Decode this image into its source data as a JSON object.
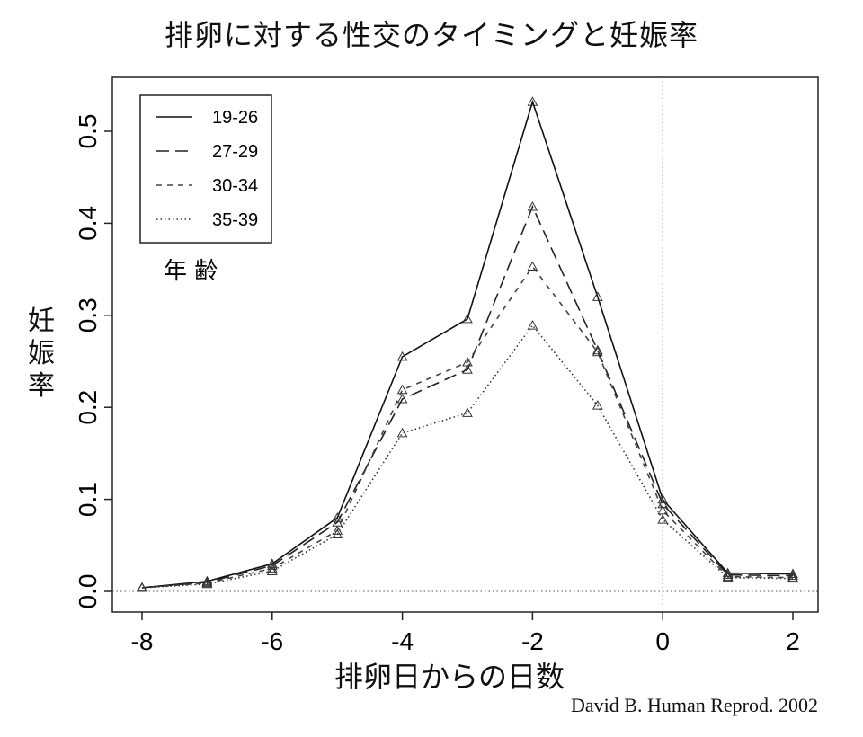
{
  "chart_data": {
    "type": "line",
    "title": "排卵に対する性交のタイミングと妊娠率",
    "xlabel": "排卵日からの日数",
    "ylabel": "妊娠率",
    "legend_title": "年 齢",
    "source": "David B. Human Reprod. 2002",
    "xlim": [
      -8,
      2
    ],
    "ylim": [
      0,
      0.5
    ],
    "x_ticks": [
      -8,
      -6,
      -4,
      -2,
      0,
      2
    ],
    "y_ticks": [
      0.0,
      0.1,
      0.2,
      0.3,
      0.4,
      0.5
    ],
    "y_tick_labels": [
      "0.0",
      "0.1",
      "0.2",
      "0.3",
      "0.4",
      "0.5"
    ],
    "reference_lines": {
      "x": 0,
      "y": 0
    },
    "legend_position": "top-left",
    "marker": "triangle",
    "x": [
      -8,
      -7,
      -6,
      -5,
      -4,
      -3,
      -2,
      -1,
      0,
      1,
      2
    ],
    "series": [
      {
        "name": "19-26",
        "dash": "solid",
        "values": [
          0.004,
          0.011,
          0.03,
          0.08,
          0.255,
          0.296,
          0.532,
          0.32,
          0.1,
          0.02,
          0.019
        ]
      },
      {
        "name": "27-29",
        "dash": "long-dash",
        "values": [
          0.004,
          0.01,
          0.028,
          0.075,
          0.209,
          0.241,
          0.418,
          0.262,
          0.095,
          0.018,
          0.017
        ]
      },
      {
        "name": "30-34",
        "dash": "short-dash",
        "values": [
          0.004,
          0.009,
          0.025,
          0.066,
          0.219,
          0.249,
          0.353,
          0.26,
          0.088,
          0.016,
          0.015
        ]
      },
      {
        "name": "35-39",
        "dash": "dotted",
        "values": [
          0.004,
          0.008,
          0.022,
          0.062,
          0.172,
          0.194,
          0.289,
          0.202,
          0.078,
          0.015,
          0.014
        ]
      }
    ]
  }
}
